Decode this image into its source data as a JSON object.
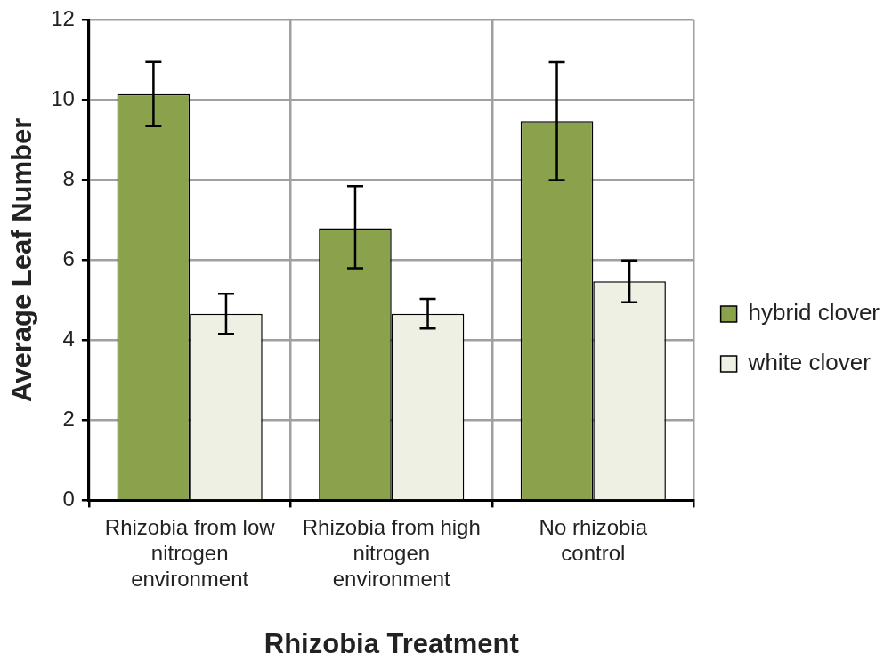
{
  "chart_data": {
    "type": "bar",
    "xlabel": "Rhizobia Treatment",
    "ylabel": "Average Leaf Number",
    "categories": [
      "Rhizobia from low nitrogen environment",
      "Rhizobia from high nitrogen environment",
      "No rhizobia control"
    ],
    "series": [
      {
        "name": "hybrid clover",
        "color": "#8ba24c",
        "values": [
          10.15,
          6.8,
          9.47
        ],
        "errors": [
          0.8,
          [
            5.8,
            7.85
          ],
          1.47
        ]
      },
      {
        "name": "white clover",
        "color": "#edf0e3",
        "values": [
          4.66,
          4.66,
          5.47
        ],
        "errors": [
          0.5,
          0.37,
          0.52
        ]
      }
    ],
    "ylim": [
      0,
      12
    ],
    "yticks": [
      0,
      2,
      4,
      6,
      8,
      10,
      12
    ],
    "grid": true,
    "legend": "right"
  }
}
